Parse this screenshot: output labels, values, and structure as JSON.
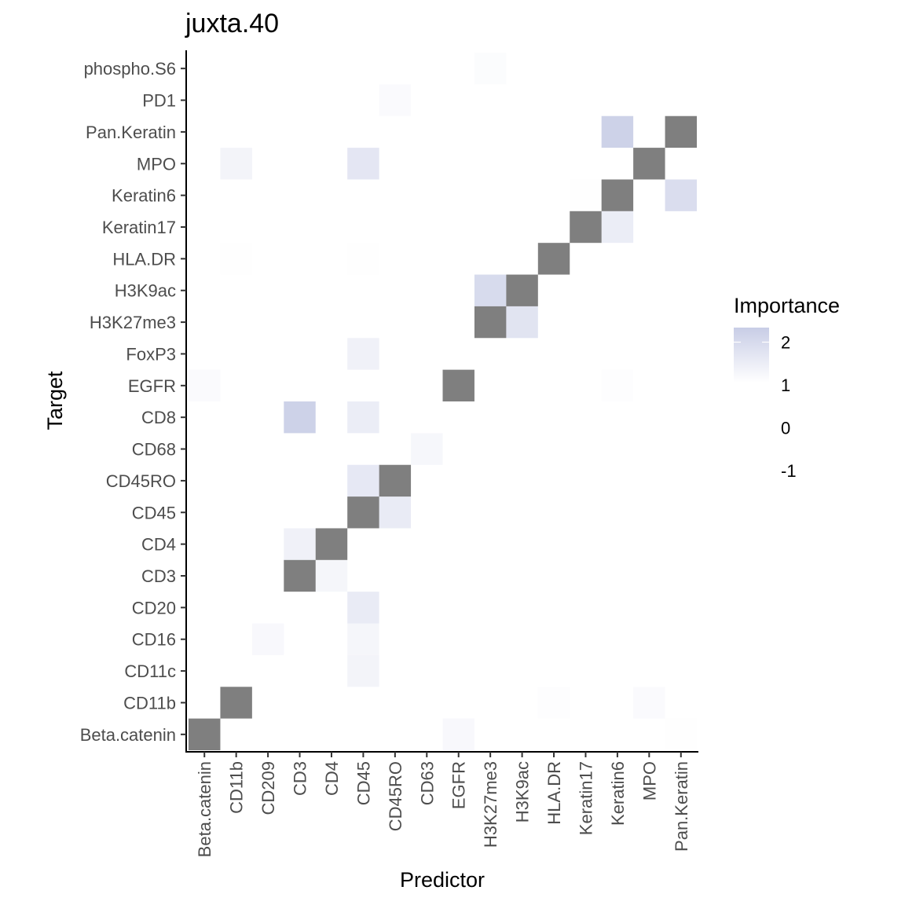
{
  "chart_data": {
    "type": "heatmap",
    "title": "juxta.40",
    "xlabel": "Predictor",
    "ylabel": "Target",
    "x_categories": [
      "Beta.catenin",
      "CD11b",
      "CD209",
      "CD3",
      "CD4",
      "CD45",
      "CD45RO",
      "CD63",
      "EGFR",
      "H3K27me3",
      "H3K9ac",
      "HLA.DR",
      "Keratin17",
      "Keratin6",
      "MPO",
      "Pan.Keratin"
    ],
    "y_categories": [
      "Beta.catenin",
      "CD11b",
      "CD11c",
      "CD16",
      "CD20",
      "CD3",
      "CD4",
      "CD45",
      "CD45RO",
      "CD68",
      "CD8",
      "EGFR",
      "FoxP3",
      "H3K27me3",
      "H3K9ac",
      "HLA.DR",
      "Keratin17",
      "Keratin6",
      "MPO",
      "Pan.Keratin",
      "PD1",
      "phospho.S6"
    ],
    "cells": [
      {
        "target": "Beta.catenin",
        "predictor": "EGFR",
        "value": 0.3
      },
      {
        "target": "Beta.catenin",
        "predictor": "Pan.Keratin",
        "value": 0.05
      },
      {
        "target": "CD11b",
        "predictor": "HLA.DR",
        "value": 0.1
      },
      {
        "target": "CD11b",
        "predictor": "MPO",
        "value": 0.2
      },
      {
        "target": "CD11c",
        "predictor": "CD45",
        "value": 0.5
      },
      {
        "target": "CD16",
        "predictor": "CD209",
        "value": 0.3
      },
      {
        "target": "CD16",
        "predictor": "CD45",
        "value": 0.4
      },
      {
        "target": "CD20",
        "predictor": "CD45",
        "value": 0.9
      },
      {
        "target": "CD3",
        "predictor": "CD4",
        "value": 0.4
      },
      {
        "target": "CD4",
        "predictor": "CD3",
        "value": 0.6
      },
      {
        "target": "CD45",
        "predictor": "CD45RO",
        "value": 0.9
      },
      {
        "target": "CD45RO",
        "predictor": "CD45",
        "value": 1.0
      },
      {
        "target": "CD68",
        "predictor": "CD63",
        "value": 0.35
      },
      {
        "target": "CD8",
        "predictor": "CD3",
        "value": 2.0
      },
      {
        "target": "CD8",
        "predictor": "CD45",
        "value": 0.8
      },
      {
        "target": "EGFR",
        "predictor": "Beta.catenin",
        "value": 0.2
      },
      {
        "target": "EGFR",
        "predictor": "Keratin6",
        "value": 0.1
      },
      {
        "target": "FoxP3",
        "predictor": "CD45",
        "value": 0.6
      },
      {
        "target": "H3K27me3",
        "predictor": "H3K9ac",
        "value": 1.2
      },
      {
        "target": "H3K9ac",
        "predictor": "H3K27me3",
        "value": 1.6
      },
      {
        "target": "HLA.DR",
        "predictor": "CD11b",
        "value": 0.05
      },
      {
        "target": "HLA.DR",
        "predictor": "CD45",
        "value": 0.05
      },
      {
        "target": "Keratin17",
        "predictor": "Keratin6",
        "value": 0.8
      },
      {
        "target": "Keratin6",
        "predictor": "Keratin17",
        "value": 0.05
      },
      {
        "target": "Keratin6",
        "predictor": "Pan.Keratin",
        "value": 1.5
      },
      {
        "target": "MPO",
        "predictor": "CD11b",
        "value": 0.5
      },
      {
        "target": "MPO",
        "predictor": "CD45",
        "value": 1.1
      },
      {
        "target": "Pan.Keratin",
        "predictor": "Keratin6",
        "value": 2.0
      },
      {
        "target": "PD1",
        "predictor": "CD45RO",
        "value": 0.2
      },
      {
        "target": "phospho.S6",
        "predictor": "H3K27me3",
        "value": 0.15
      }
    ],
    "self_cells_color": "#7f7f7f",
    "legend": {
      "title": "Importance",
      "ticks": [
        "2",
        "1",
        "0",
        "-1"
      ],
      "tick_values": [
        2,
        1,
        0,
        -1
      ],
      "color_low": "#ffffff",
      "color_high": "#c8cde6",
      "range": [
        0,
        2.2
      ],
      "placement": "right"
    },
    "grid": false
  }
}
